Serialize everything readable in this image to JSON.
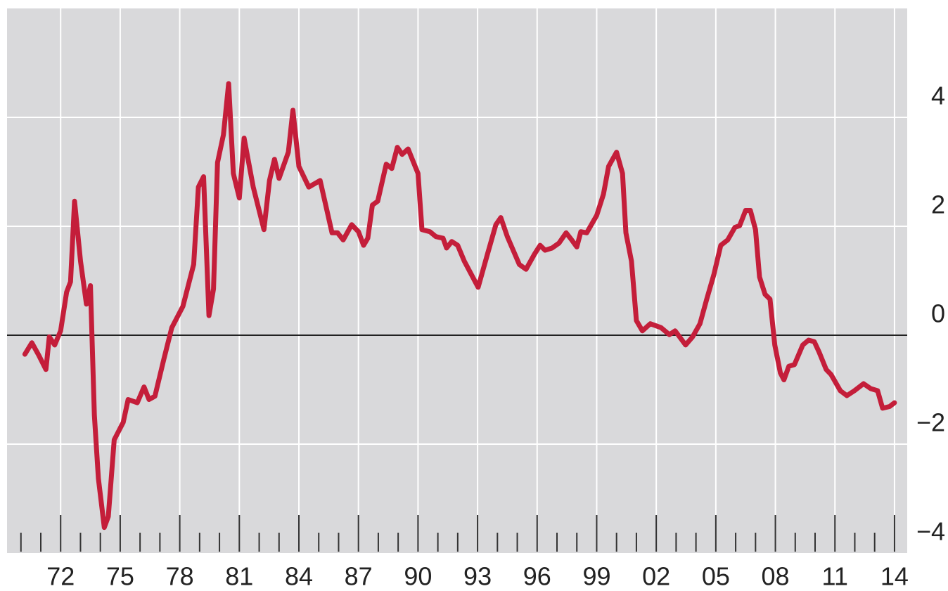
{
  "chart_data": {
    "type": "line",
    "x": [
      1970.2,
      1970.55,
      1970.9,
      1971.26,
      1971.43,
      1971.7,
      1972.0,
      1972.3,
      1972.5,
      1972.7,
      1973.0,
      1973.3,
      1973.5,
      1973.7,
      1973.9,
      1974.2,
      1974.4,
      1974.7,
      1975.15,
      1975.4,
      1975.86,
      1976.2,
      1976.45,
      1976.75,
      1977.2,
      1977.6,
      1978.16,
      1978.7,
      1978.94,
      1979.2,
      1979.47,
      1979.7,
      1979.9,
      1980.2,
      1980.46,
      1980.7,
      1981.0,
      1981.24,
      1981.7,
      1982.24,
      1982.52,
      1982.77,
      1983.0,
      1983.47,
      1983.7,
      1984.0,
      1984.5,
      1985.07,
      1985.67,
      1985.95,
      1986.23,
      1986.66,
      1987.0,
      1987.26,
      1987.47,
      1987.7,
      1987.97,
      1988.4,
      1988.68,
      1988.96,
      1989.2,
      1989.5,
      1990.0,
      1990.2,
      1990.6,
      1990.9,
      1991.26,
      1991.44,
      1991.7,
      1992.0,
      1992.33,
      1993.03,
      1993.5,
      1993.92,
      1994.17,
      1994.5,
      1995.1,
      1995.44,
      1995.87,
      1996.15,
      1996.4,
      1996.75,
      1997.1,
      1997.46,
      1997.74,
      1998.0,
      1998.2,
      1998.5,
      1999.0,
      1999.34,
      1999.6,
      2000.0,
      2000.3,
      2000.47,
      2000.75,
      2001.0,
      2001.3,
      2001.7,
      2002.24,
      2002.66,
      2002.95,
      2003.48,
      2003.83,
      2004.2,
      2004.54,
      2004.9,
      2005.25,
      2005.6,
      2005.96,
      2006.2,
      2006.5,
      2006.74,
      2007.0,
      2007.2,
      2007.48,
      2007.73,
      2007.97,
      2008.25,
      2008.43,
      2008.68,
      2008.96,
      2009.38,
      2009.67,
      2009.96,
      2010.2,
      2010.56,
      2010.8,
      2011.27,
      2011.6,
      2011.98,
      2012.44,
      2012.8,
      2013.15,
      2013.4,
      2013.75,
      2014.0
    ],
    "series": [
      {
        "color": "#c41e3a",
        "values": [
          -0.35,
          -0.14,
          -0.37,
          -0.63,
          -0.03,
          -0.18,
          0.08,
          0.79,
          0.98,
          2.46,
          1.36,
          0.57,
          0.91,
          -1.47,
          -2.63,
          -3.53,
          -3.33,
          -1.92,
          -1.6,
          -1.18,
          -1.24,
          -0.95,
          -1.18,
          -1.12,
          -0.44,
          0.14,
          0.53,
          1.3,
          2.72,
          2.91,
          0.36,
          0.85,
          3.17,
          3.68,
          4.62,
          2.97,
          2.52,
          3.62,
          2.72,
          1.94,
          2.84,
          3.23,
          2.88,
          3.36,
          4.13,
          3.1,
          2.72,
          2.84,
          1.88,
          1.88,
          1.75,
          2.03,
          1.9,
          1.65,
          1.78,
          2.39,
          2.46,
          3.14,
          3.06,
          3.45,
          3.32,
          3.42,
          2.97,
          1.94,
          1.9,
          1.81,
          1.78,
          1.6,
          1.72,
          1.65,
          1.36,
          0.88,
          1.49,
          2.03,
          2.16,
          1.81,
          1.3,
          1.21,
          1.49,
          1.65,
          1.56,
          1.6,
          1.69,
          1.88,
          1.75,
          1.62,
          1.9,
          1.88,
          2.2,
          2.59,
          3.1,
          3.36,
          2.97,
          1.88,
          1.36,
          0.27,
          0.08,
          0.21,
          0.14,
          0.01,
          0.08,
          -0.18,
          -0.03,
          0.21,
          0.66,
          1.11,
          1.65,
          1.75,
          1.98,
          2.01,
          2.29,
          2.29,
          1.94,
          1.07,
          0.75,
          0.66,
          -0.18,
          -0.69,
          -0.82,
          -0.57,
          -0.54,
          -0.18,
          -0.09,
          -0.12,
          -0.31,
          -0.63,
          -0.72,
          -1.02,
          -1.11,
          -1.02,
          -0.89,
          -0.98,
          -1.02,
          -1.34,
          -1.31,
          -1.24
        ]
      }
    ],
    "xlim": [
      1969.3,
      2014.64
    ],
    "xticks": [
      {
        "value": 1972,
        "label": "72"
      },
      {
        "value": 1975,
        "label": "75"
      },
      {
        "value": 1978,
        "label": "78"
      },
      {
        "value": 1981,
        "label": "81"
      },
      {
        "value": 1984,
        "label": "84"
      },
      {
        "value": 1987,
        "label": "87"
      },
      {
        "value": 1990,
        "label": "90"
      },
      {
        "value": 1993,
        "label": "93"
      },
      {
        "value": 1996,
        "label": "96"
      },
      {
        "value": 1999,
        "label": "99"
      },
      {
        "value": 2002,
        "label": "02"
      },
      {
        "value": 2005,
        "label": "05"
      },
      {
        "value": 2008,
        "label": "08"
      },
      {
        "value": 2011,
        "label": "11"
      },
      {
        "value": 2014,
        "label": "14"
      }
    ],
    "xminorticks": [
      1970,
      1971,
      1973,
      1974,
      1976,
      1977,
      1979,
      1980,
      1982,
      1983,
      1985,
      1986,
      1988,
      1989,
      1991,
      1992,
      1994,
      1995,
      1997,
      1998,
      2000,
      2001,
      2003,
      2004,
      2006,
      2007,
      2009,
      2010,
      2012,
      2013
    ],
    "ylim": [
      -4,
      6
    ],
    "yticks": [
      {
        "value": -4,
        "label": "−4"
      },
      {
        "value": -2,
        "label": "−2"
      },
      0,
      2,
      4
    ],
    "grid": true
  }
}
